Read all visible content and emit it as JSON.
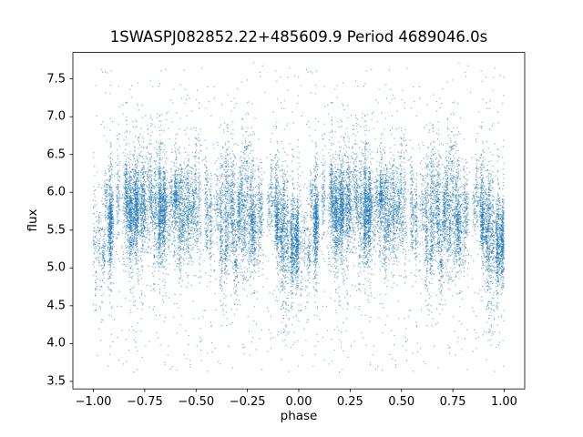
{
  "figure": {
    "background": "#ffffff",
    "text_color": "#000000",
    "spine_color": "#000000"
  },
  "chart_data": {
    "type": "scatter",
    "title": "1SWASPJ082852.22+485609.9 Period 4689046.0s",
    "xlabel": "phase",
    "ylabel": "flux",
    "xlim": [
      -1.1,
      1.1
    ],
    "ylim": [
      3.4,
      7.85
    ],
    "grid": false,
    "legend": "none",
    "marker_color": "#1f77b4",
    "marker_alpha": 0.55,
    "marker_size_px": 1.2,
    "x_ticks": [
      {
        "value": -1.0,
        "label": "−1.00"
      },
      {
        "value": -0.75,
        "label": "−0.75"
      },
      {
        "value": -0.5,
        "label": "−0.50"
      },
      {
        "value": -0.25,
        "label": "−0.25"
      },
      {
        "value": 0.0,
        "label": "0.00"
      },
      {
        "value": 0.25,
        "label": "0.25"
      },
      {
        "value": 0.5,
        "label": "0.50"
      },
      {
        "value": 0.75,
        "label": "0.75"
      },
      {
        "value": 1.0,
        "label": "1.00"
      }
    ],
    "y_ticks": [
      {
        "value": 3.5,
        "label": "3.5"
      },
      {
        "value": 4.0,
        "label": "4.0"
      },
      {
        "value": 4.5,
        "label": "4.5"
      },
      {
        "value": 5.0,
        "label": "5.0"
      },
      {
        "value": 5.5,
        "label": "5.5"
      },
      {
        "value": 6.0,
        "label": "6.0"
      },
      {
        "value": 6.5,
        "label": "6.5"
      },
      {
        "value": 7.0,
        "label": "7.0"
      },
      {
        "value": 7.5,
        "label": "7.5"
      }
    ],
    "series_description": "Phase-folded SuperWASP photometric light curve plotted twice (at phase and phase−1) over x in [−1, 1]. A dense band of flux values between about 5.0 and 6.4 centred near flux 5.7, built from many tight vertical night-streaks, with a shallow brightness dip to about 5.3 near phase 0 (and ±1), occasional tall streaks reaching flux 7.0–7.7, and sparse outliers down to flux 3.6.",
    "synth": {
      "seed": 7,
      "n_clusters": 160,
      "cluster_points_min": 20,
      "cluster_points_max": 110,
      "phase_sigma": 0.0045,
      "cluster_mean_sigma": 0.17,
      "flux_base": 5.72,
      "sine_amp": 0.06,
      "dip_depth": 0.35,
      "dip_sigma": 0.05,
      "point_sigma_min": 0.15,
      "point_sigma_max": 0.5,
      "tail_fraction": 0.08,
      "tail_mult": 2.4,
      "n_outliers": 400,
      "flux_min": 3.62,
      "flux_max": 7.72
    }
  }
}
